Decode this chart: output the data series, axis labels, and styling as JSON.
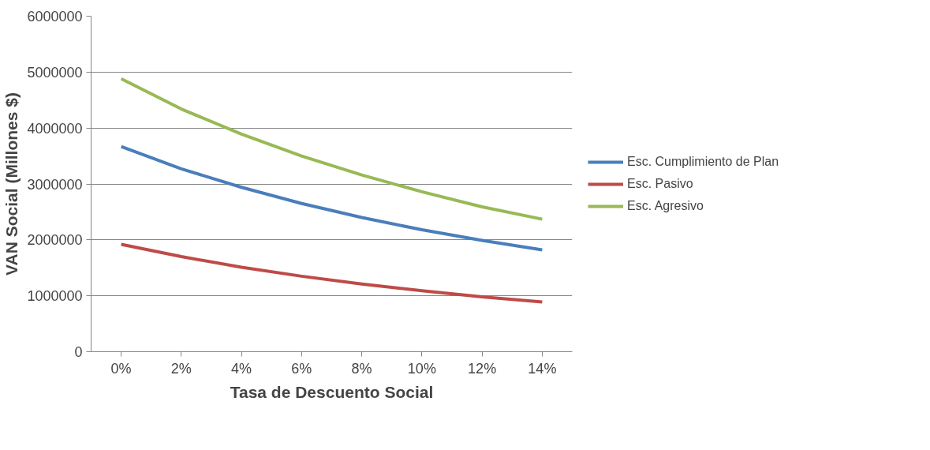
{
  "chart_data": {
    "type": "line",
    "xlabel": "Tasa de Descuento Social",
    "ylabel": "VAN Social (Millones $)",
    "categories": [
      "0%",
      "2%",
      "4%",
      "6%",
      "8%",
      "10%",
      "12%",
      "14%"
    ],
    "ylim": [
      0,
      6000000
    ],
    "yticks": [
      0,
      1000000,
      2000000,
      3000000,
      4000000,
      5000000,
      6000000
    ],
    "grid": "y",
    "legend": "right",
    "marker": "none",
    "line_style": "solid",
    "series": [
      {
        "name": "Esc. Cumplimiento de Plan",
        "color": "#4a7ebb",
        "values": [
          3670000,
          3270000,
          2940000,
          2650000,
          2400000,
          2180000,
          1990000,
          1820000
        ]
      },
      {
        "name": "Esc. Pasivo",
        "color": "#be4b48",
        "values": [
          1920000,
          1700000,
          1510000,
          1350000,
          1210000,
          1090000,
          980000,
          890000
        ]
      },
      {
        "name": "Esc. Agresivo",
        "color": "#98b954",
        "values": [
          4880000,
          4340000,
          3890000,
          3500000,
          3160000,
          2860000,
          2590000,
          2370000
        ]
      }
    ]
  }
}
